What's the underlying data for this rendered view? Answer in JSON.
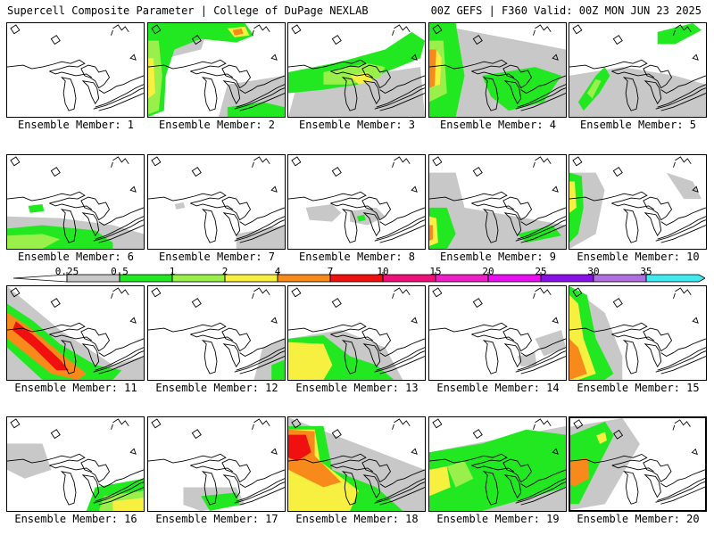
{
  "header": {
    "title_left": "Supercell Composite Parameter | College of DuPage NEXLAB",
    "title_right": "00Z GEFS | F360 Valid: 00Z MON JUN 23 2025"
  },
  "panels": [
    {
      "caption": "Ensemble Member: 1"
    },
    {
      "caption": "Ensemble Member: 2"
    },
    {
      "caption": "Ensemble Member: 3"
    },
    {
      "caption": "Ensemble Member: 4"
    },
    {
      "caption": "Ensemble Member: 5"
    },
    {
      "caption": "Ensemble Member: 6"
    },
    {
      "caption": "Ensemble Member: 7"
    },
    {
      "caption": "Ensemble Member: 8"
    },
    {
      "caption": "Ensemble Member: 9"
    },
    {
      "caption": "Ensemble Member: 10"
    },
    {
      "caption": "Ensemble Member: 11"
    },
    {
      "caption": "Ensemble Member: 12"
    },
    {
      "caption": "Ensemble Member: 13"
    },
    {
      "caption": "Ensemble Member: 14"
    },
    {
      "caption": "Ensemble Member: 15"
    },
    {
      "caption": "Ensemble Member: 16"
    },
    {
      "caption": "Ensemble Member: 17"
    },
    {
      "caption": "Ensemble Member: 18"
    },
    {
      "caption": "Ensemble Member: 19"
    },
    {
      "caption": "Ensemble Member: 20"
    }
  ],
  "colorbar": {
    "levels": [
      {
        "label": "0.25",
        "color": "#c8c8c8"
      },
      {
        "label": "0.5",
        "color": "#22e822"
      },
      {
        "label": "1",
        "color": "#9af04a"
      },
      {
        "label": "2",
        "color": "#f8f040"
      },
      {
        "label": "4",
        "color": "#f88a1c"
      },
      {
        "label": "7",
        "color": "#f01010"
      },
      {
        "label": "10",
        "color": "#f0107a"
      },
      {
        "label": "15",
        "color": "#f020c8"
      },
      {
        "label": "20",
        "color": "#e810f0"
      },
      {
        "label": "25",
        "color": "#8a10e8"
      },
      {
        "label": "30",
        "color": "#b070e0"
      },
      {
        "label": "35",
        "color": "#40e8f0"
      }
    ]
  }
}
